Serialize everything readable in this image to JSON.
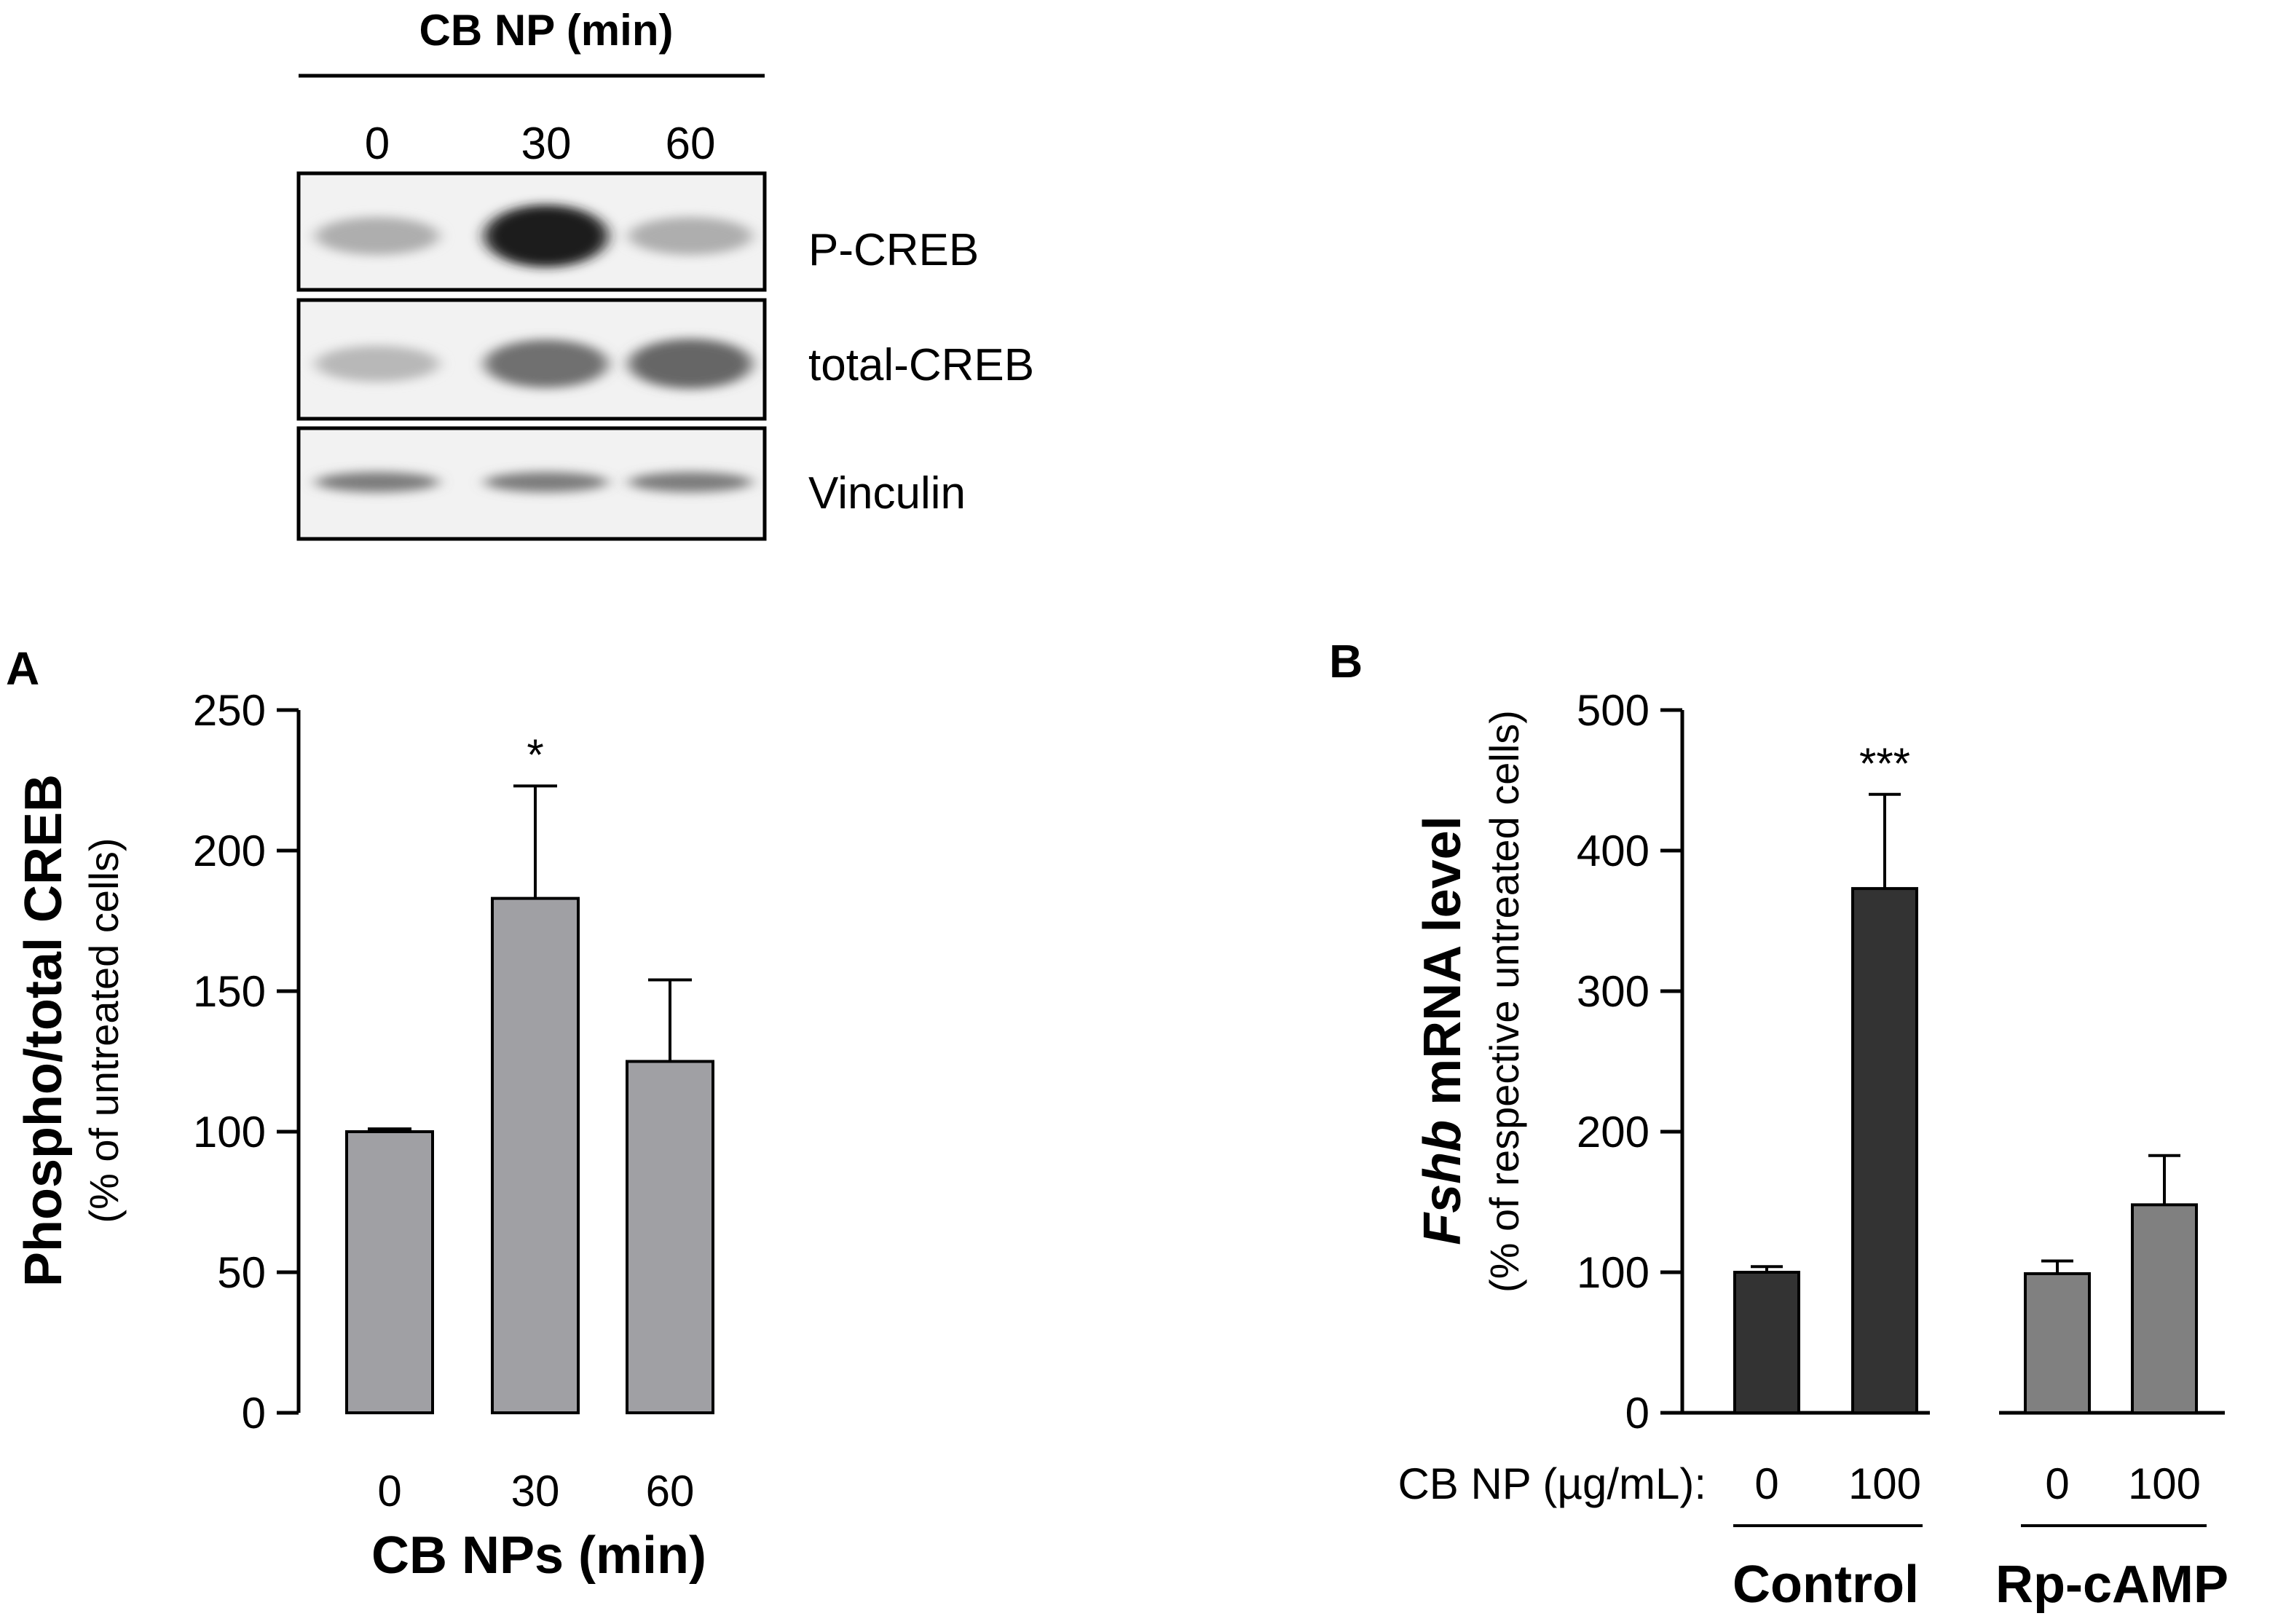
{
  "blot": {
    "header": "CB NP (min)",
    "lanes": [
      "0",
      "30",
      "60"
    ],
    "rows": [
      {
        "label": "P-CREB",
        "intensity": [
          0.25,
          0.95,
          0.25
        ]
      },
      {
        "label": "total-CREB",
        "intensity": [
          0.2,
          0.55,
          0.6
        ]
      },
      {
        "label": "Vinculin",
        "intensity": [
          0.5,
          0.5,
          0.5
        ]
      }
    ]
  },
  "chart_data": [
    {
      "panel": "A",
      "type": "bar",
      "categories": [
        "0",
        "30",
        "60"
      ],
      "values": [
        100,
        183,
        125
      ],
      "errors": [
        1,
        40,
        29
      ],
      "significance": [
        "",
        "*",
        ""
      ],
      "ylabel": "Phospho/total CREB",
      "ylabel_sub": "(% of untreated cells)",
      "xlabel": "CB NPs (min)",
      "ylim": [
        0,
        250
      ],
      "yticks": [
        "0",
        "50",
        "100",
        "150",
        "200",
        "250"
      ],
      "bar_color": "#a0a0a4"
    },
    {
      "panel": "B",
      "type": "bar",
      "categories": [
        "0",
        "100",
        "0",
        "100"
      ],
      "groups": [
        {
          "name": "Control",
          "indices": [
            0,
            1
          ],
          "color": "#333333"
        },
        {
          "name": "Rp-cAMP",
          "indices": [
            2,
            3
          ],
          "color": "#808080"
        }
      ],
      "values": [
        100,
        373,
        99,
        148
      ],
      "errors": [
        4,
        67,
        9,
        35
      ],
      "significance": [
        "",
        "***",
        "",
        ""
      ],
      "ylabel_italic": "Fshb",
      "ylabel_rest": " mRNA level",
      "ylabel_sub": "(% of respective untreated cells)",
      "x_prefix": "CB NP (µg/mL):",
      "ylim": [
        0,
        500
      ],
      "yticks": [
        "0",
        "100",
        "200",
        "300",
        "400",
        "500"
      ]
    }
  ]
}
